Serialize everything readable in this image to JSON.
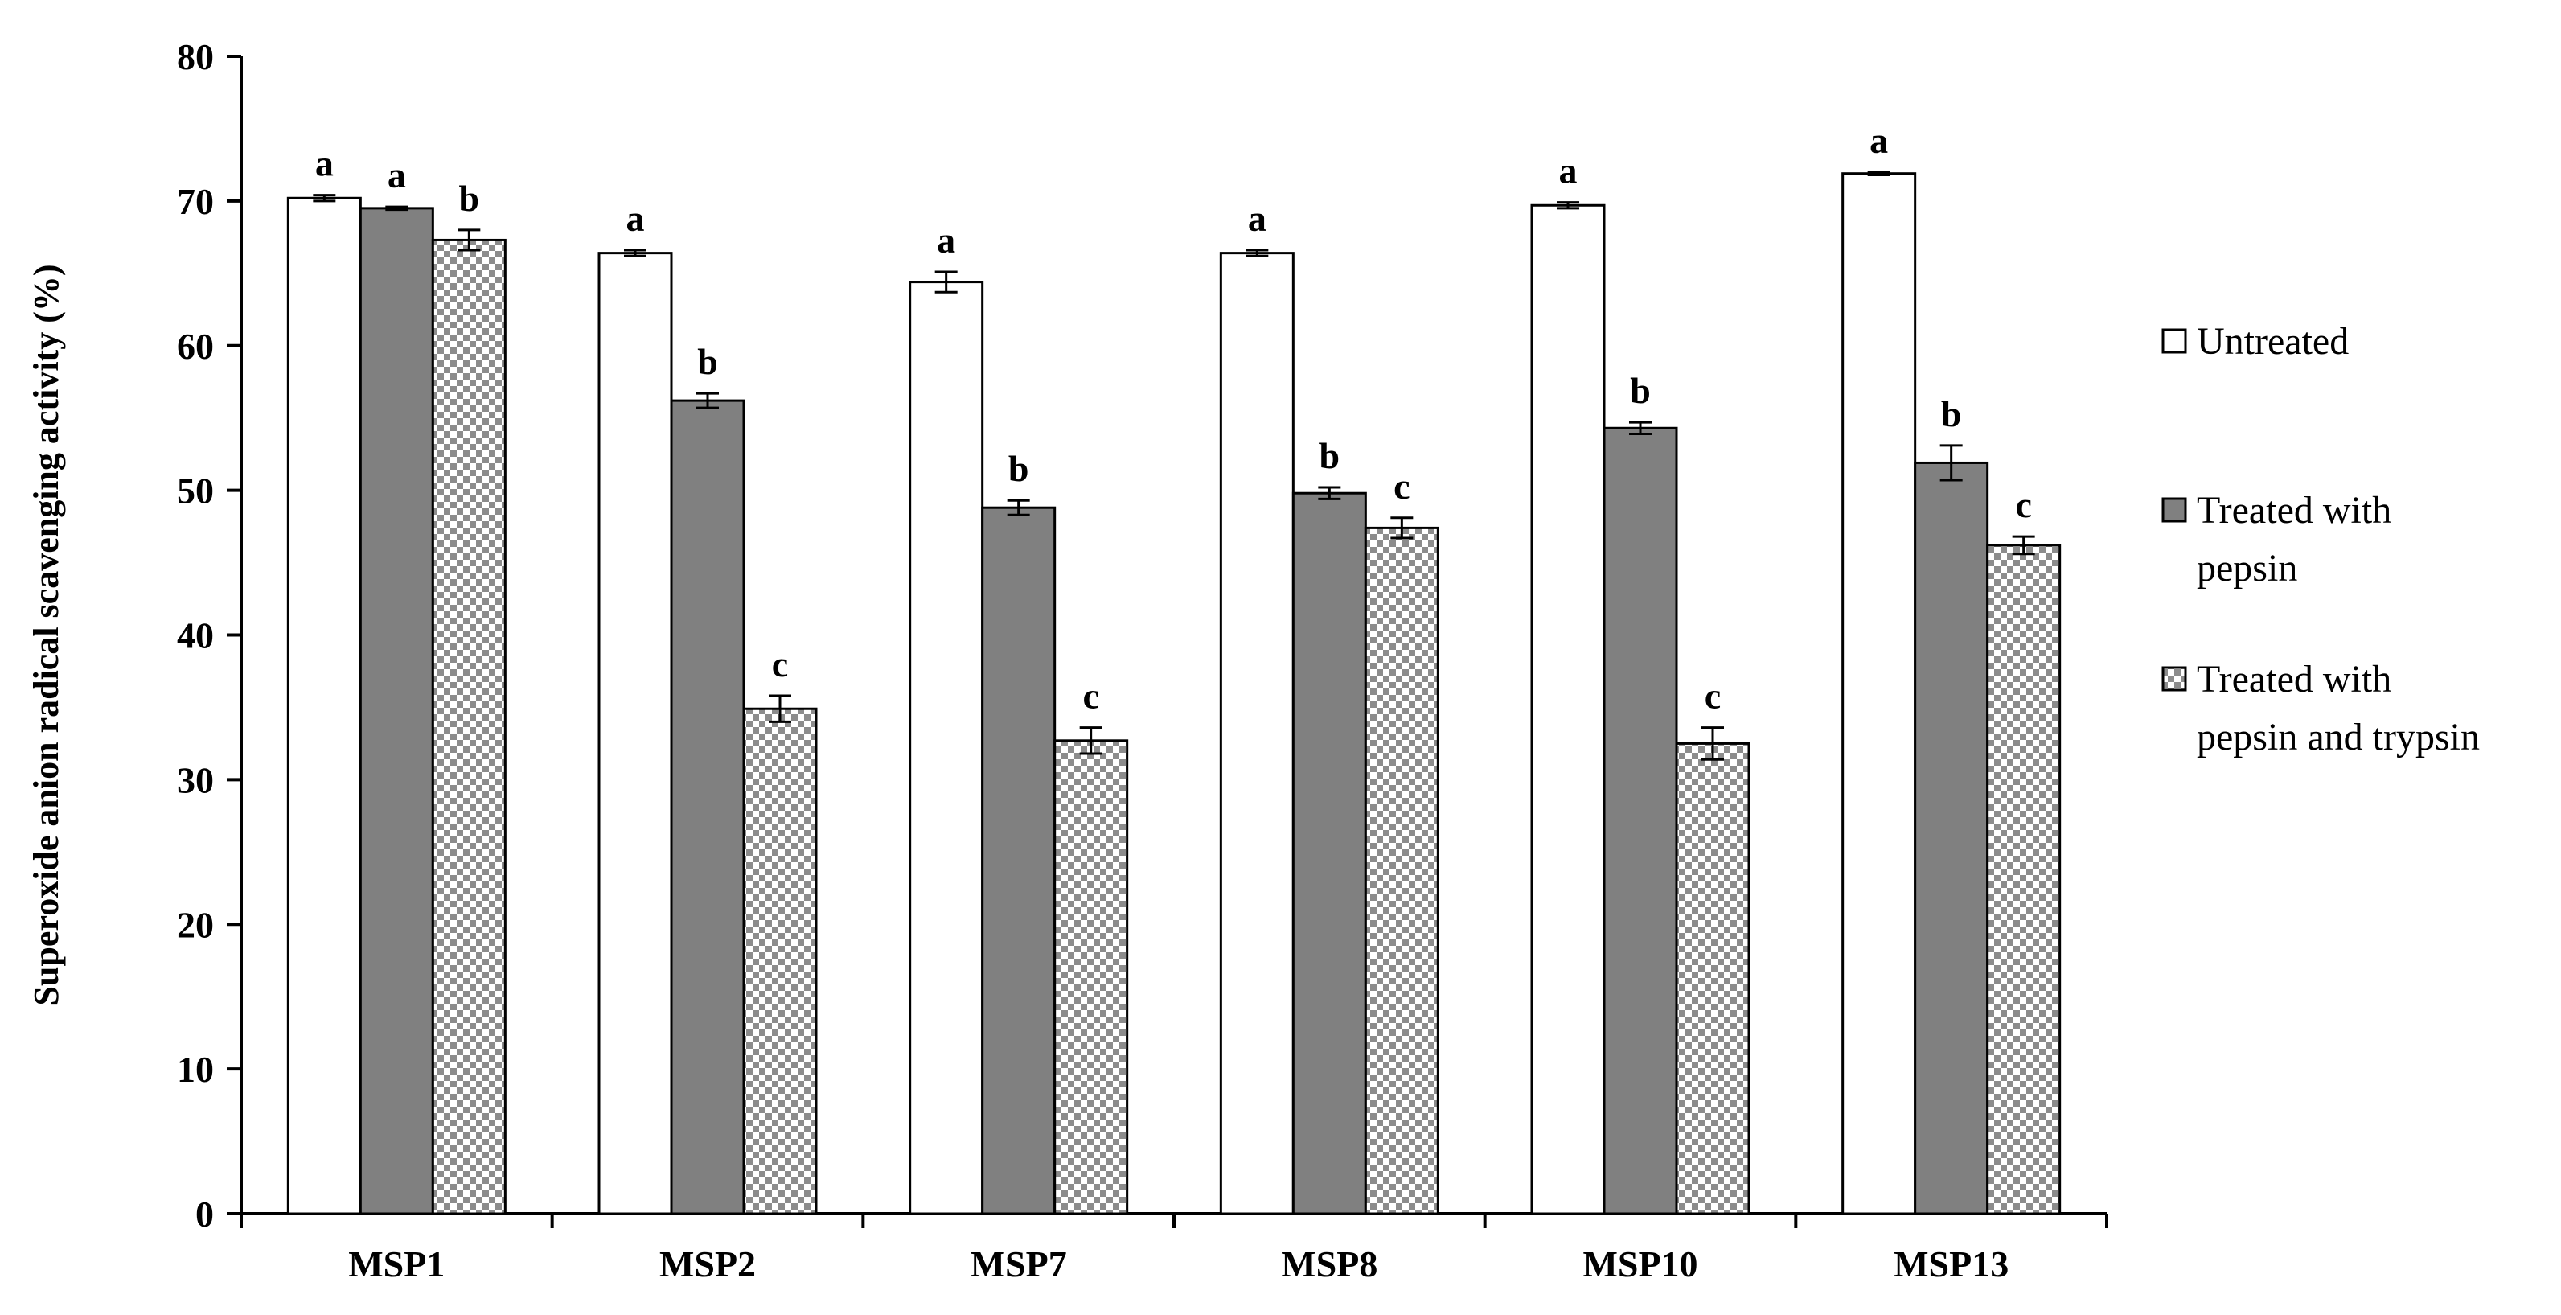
{
  "chart_data": {
    "type": "bar",
    "title": "",
    "xlabel": "",
    "ylabel": "Superoxide anion radical scavenging activity (%)",
    "ylim": [
      0,
      80
    ],
    "yticks": [
      0,
      10,
      20,
      30,
      40,
      50,
      60,
      70,
      80
    ],
    "grid": false,
    "legend_position": "right",
    "categories": [
      "MSP1",
      "MSP2",
      "MSP7",
      "MSP8",
      "MSP10",
      "MSP13"
    ],
    "series": [
      {
        "name": "Untreated",
        "legend_lines": [
          "Untreated"
        ],
        "fill": "#ffffff",
        "pattern": "none",
        "values": [
          70.2,
          66.4,
          64.4,
          66.4,
          69.7,
          71.9
        ],
        "errors": [
          0.2,
          0.2,
          0.7,
          0.2,
          0.2,
          0.1
        ],
        "letters": [
          "a",
          "a",
          "a",
          "a",
          "a",
          "a"
        ]
      },
      {
        "name": "Treated with pepsin",
        "legend_lines": [
          "Treated with",
          "pepsin"
        ],
        "fill": "#808080",
        "pattern": "none",
        "values": [
          69.5,
          56.2,
          48.8,
          49.8,
          54.3,
          51.9
        ],
        "errors": [
          0.1,
          0.5,
          0.5,
          0.4,
          0.4,
          1.2
        ],
        "letters": [
          "a",
          "b",
          "b",
          "b",
          "b",
          "b"
        ]
      },
      {
        "name": "Treated with pepsin and trypsin",
        "legend_lines": [
          "Treated with",
          "pepsin and trypsin"
        ],
        "fill": "#cfcfcf",
        "pattern": "checker",
        "values": [
          67.3,
          34.9,
          32.7,
          47.4,
          32.5,
          46.2
        ],
        "errors": [
          0.7,
          0.9,
          0.9,
          0.7,
          1.1,
          0.6
        ],
        "letters": [
          "b",
          "c",
          "c",
          "c",
          "c",
          "c"
        ]
      }
    ]
  }
}
